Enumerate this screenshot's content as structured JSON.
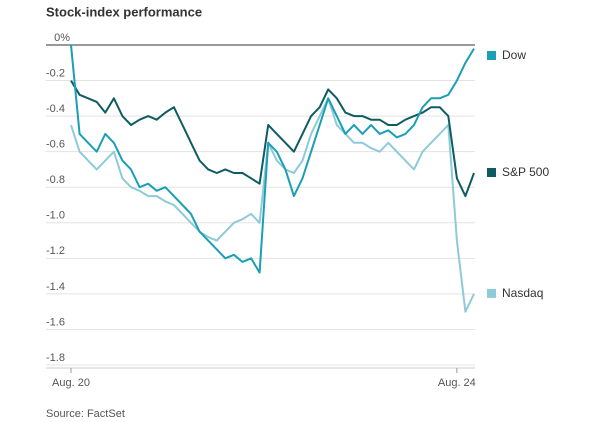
{
  "chart_data": {
    "type": "line",
    "title": "Stock-index performance",
    "source": "Source: FactSet",
    "categories": [
      "Aug. 20",
      null,
      null,
      null,
      null,
      null,
      null,
      null,
      null,
      null,
      null,
      null,
      null,
      null,
      null,
      null,
      null,
      null,
      null,
      null,
      null,
      null,
      null,
      null,
      null,
      null,
      null,
      null,
      null,
      null,
      null,
      null,
      null,
      null,
      null,
      null,
      null,
      null,
      null,
      null,
      null,
      null,
      null,
      null,
      null,
      "Aug. 24",
      null,
      null
    ],
    "ylim": [
      -1.8,
      0
    ],
    "yticks": [
      {
        "value": 0,
        "label": "0%"
      },
      -0.2,
      -0.4,
      -0.6,
      -0.8,
      {
        "value": -1,
        "label": "-1.0"
      },
      -1.2,
      -1.4,
      -1.6,
      -1.8
    ],
    "grid": true,
    "legend": "right",
    "series": [
      {
        "name": "Dow",
        "color": "#1a9fb4",
        "values": [
          0,
          -0.5,
          -0.55,
          -0.6,
          -0.5,
          -0.55,
          -0.65,
          -0.7,
          -0.8,
          -0.78,
          -0.82,
          -0.8,
          -0.85,
          -0.9,
          -0.95,
          -1.05,
          -1.1,
          -1.15,
          -1.2,
          -1.18,
          -1.22,
          -1.2,
          -1.28,
          -0.55,
          -0.6,
          -0.7,
          -0.85,
          -0.75,
          -0.6,
          -0.45,
          -0.3,
          -0.4,
          -0.5,
          -0.45,
          -0.5,
          -0.45,
          -0.5,
          -0.48,
          -0.52,
          -0.5,
          -0.45,
          -0.35,
          -0.3,
          -0.3,
          -0.28,
          -0.2,
          -0.1,
          -0.02
        ]
      },
      {
        "name": "S&P 500",
        "color": "#0e5c62",
        "values": [
          -0.2,
          -0.28,
          -0.3,
          -0.32,
          -0.38,
          -0.3,
          -0.4,
          -0.45,
          -0.42,
          -0.4,
          -0.42,
          -0.38,
          -0.35,
          -0.45,
          -0.55,
          -0.65,
          -0.7,
          -0.72,
          -0.7,
          -0.72,
          -0.72,
          -0.75,
          -0.78,
          -0.45,
          -0.5,
          -0.55,
          -0.6,
          -0.5,
          -0.4,
          -0.35,
          -0.25,
          -0.3,
          -0.38,
          -0.4,
          -0.4,
          -0.42,
          -0.42,
          -0.45,
          -0.45,
          -0.42,
          -0.4,
          -0.38,
          -0.35,
          -0.35,
          -0.4,
          -0.75,
          -0.85,
          -0.72
        ]
      },
      {
        "name": "Nasdaq",
        "color": "#8ecad8",
        "values": [
          -0.45,
          -0.6,
          -0.65,
          -0.7,
          -0.65,
          -0.6,
          -0.75,
          -0.8,
          -0.82,
          -0.85,
          -0.85,
          -0.88,
          -0.9,
          -0.95,
          -1.0,
          -1.05,
          -1.08,
          -1.1,
          -1.05,
          -1.0,
          -0.98,
          -0.95,
          -1.0,
          -0.55,
          -0.65,
          -0.7,
          -0.72,
          -0.65,
          -0.5,
          -0.4,
          -0.3,
          -0.45,
          -0.5,
          -0.55,
          -0.55,
          -0.58,
          -0.6,
          -0.55,
          -0.6,
          -0.65,
          -0.7,
          -0.6,
          -0.55,
          -0.5,
          -0.45,
          -1.1,
          -1.5,
          -1.4
        ]
      }
    ]
  }
}
